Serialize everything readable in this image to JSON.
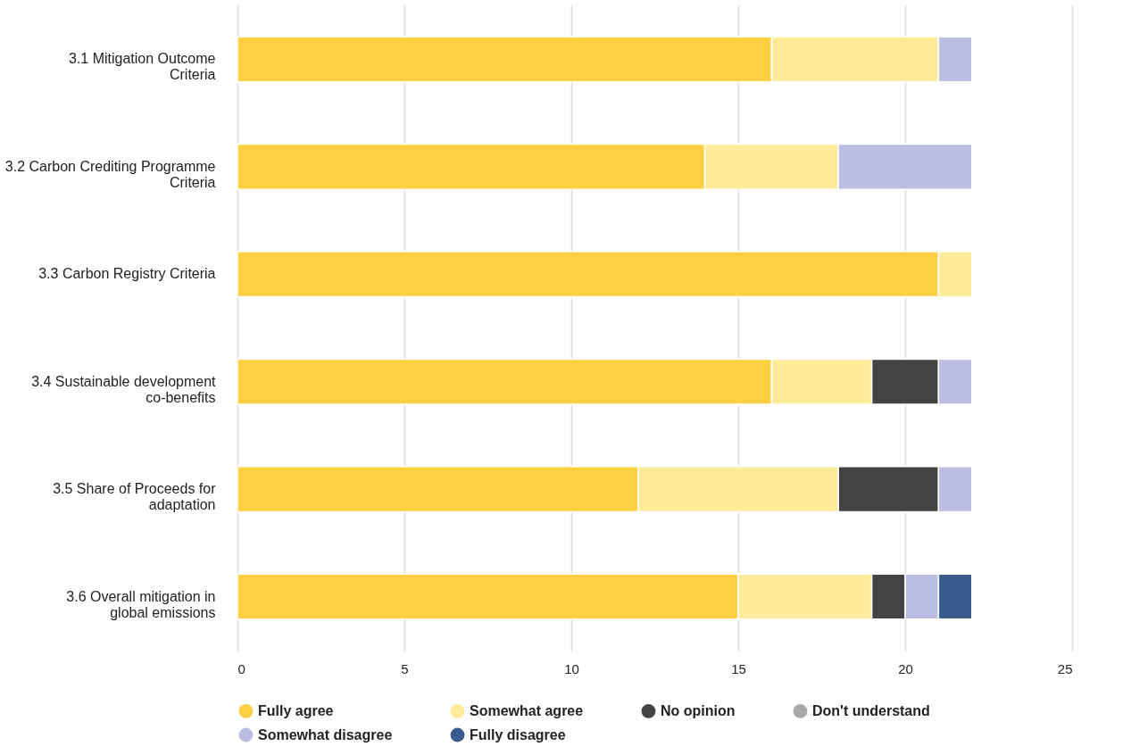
{
  "chart_data": {
    "type": "bar",
    "orientation": "horizontal",
    "stacked": true,
    "categories": [
      "3.1 Mitigation Outcome Criteria",
      "3.2 Carbon Crediting Programme Criteria",
      "3.3 Carbon Registry Criteria",
      "3.4 Sustainable development co-benefits",
      "3.5 Share of Proceeds for adaptation",
      "3.6 Overall mitigation in global emissions"
    ],
    "series": [
      {
        "name": "Fully agree",
        "color": "#fdcf41",
        "values": [
          16,
          14,
          21,
          16,
          12,
          15
        ]
      },
      {
        "name": "Somewhat agree",
        "color": "#feeb9a",
        "values": [
          5,
          4,
          1,
          3,
          6,
          4
        ]
      },
      {
        "name": "No opinion",
        "color": "#434345",
        "values": [
          0,
          0,
          0,
          2,
          3,
          1
        ]
      },
      {
        "name": "Don't understand",
        "color": "#a9a9a9",
        "values": [
          0,
          0,
          0,
          0,
          0,
          0
        ]
      },
      {
        "name": "Somewhat disagree",
        "color": "#bbbde3",
        "values": [
          1,
          4,
          0,
          1,
          1,
          1
        ]
      },
      {
        "name": "Fully disagree",
        "color": "#365b8c",
        "values": [
          0,
          0,
          0,
          0,
          0,
          1
        ]
      }
    ],
    "xlim": [
      0,
      25
    ],
    "xticks": [
      0,
      5,
      10,
      15,
      20,
      25
    ],
    "grid": "x",
    "legend": "bottom"
  }
}
